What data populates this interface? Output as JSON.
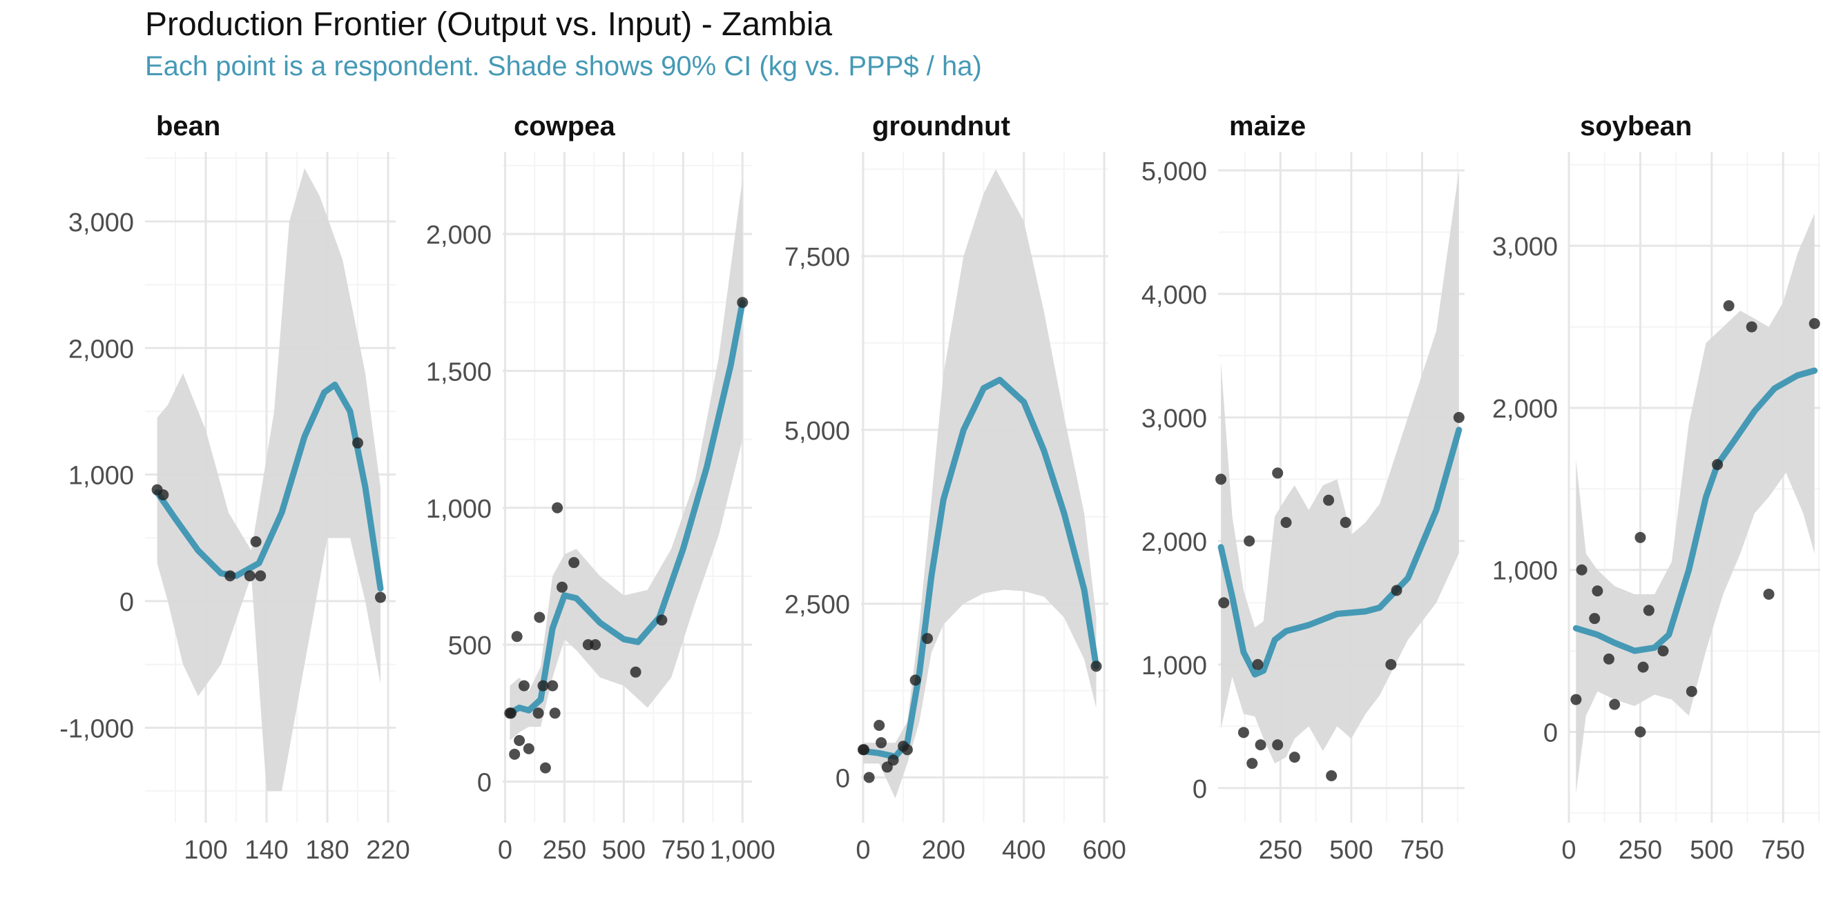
{
  "title": "Production Frontier (Output vs. Input) - Zambia",
  "subtitle": "Each point is a respondent. Shade shows 90% CI (kg vs. PPP$ / ha)",
  "colors": {
    "curve": "#4599b5",
    "band": "#d9d9d9",
    "point": "#222222",
    "grid_major": "#e6e6e6",
    "grid_minor": "#f4f4f4",
    "tick_text": "#4d4d4d"
  },
  "chart_data": [
    {
      "type": "scatter",
      "facet": "bean",
      "xlim": [
        60,
        225
      ],
      "ylim": [
        -1750,
        3550
      ],
      "x_ticks": [
        100,
        140,
        180,
        220
      ],
      "x_tick_labels": [
        "100",
        "140",
        "180",
        "220"
      ],
      "y_ticks": [
        -1000,
        0,
        1000,
        2000,
        3000
      ],
      "y_tick_labels": [
        "-1,000",
        "0",
        "1,000",
        "2,000",
        "3,000"
      ],
      "points": [
        [
          68,
          880
        ],
        [
          72,
          840
        ],
        [
          116,
          200
        ],
        [
          129,
          200
        ],
        [
          133,
          470
        ],
        [
          136,
          200
        ],
        [
          200,
          1250
        ],
        [
          215,
          30
        ]
      ],
      "fit": [
        [
          68,
          860
        ],
        [
          80,
          650
        ],
        [
          95,
          400
        ],
        [
          110,
          220
        ],
        [
          120,
          200
        ],
        [
          135,
          300
        ],
        [
          150,
          700
        ],
        [
          165,
          1300
        ],
        [
          178,
          1650
        ],
        [
          185,
          1710
        ],
        [
          195,
          1500
        ],
        [
          205,
          900
        ],
        [
          215,
          100
        ]
      ],
      "ci_upper": [
        [
          68,
          1450
        ],
        [
          75,
          1550
        ],
        [
          85,
          1800
        ],
        [
          100,
          1350
        ],
        [
          115,
          700
        ],
        [
          130,
          400
        ],
        [
          145,
          1500
        ],
        [
          155,
          3000
        ],
        [
          165,
          3420
        ],
        [
          175,
          3200
        ],
        [
          190,
          2700
        ],
        [
          205,
          1800
        ],
        [
          215,
          900
        ]
      ],
      "ci_lower": [
        [
          68,
          300
        ],
        [
          75,
          0
        ],
        [
          85,
          -500
        ],
        [
          95,
          -750
        ],
        [
          110,
          -500
        ],
        [
          120,
          -150
        ],
        [
          130,
          200
        ],
        [
          140,
          -1500
        ],
        [
          150,
          -1500
        ],
        [
          165,
          -500
        ],
        [
          180,
          500
        ],
        [
          195,
          500
        ],
        [
          205,
          0
        ],
        [
          215,
          -650
        ]
      ]
    },
    {
      "type": "scatter",
      "facet": "cowpea",
      "xlim": [
        -10,
        1040
      ],
      "ylim": [
        -150,
        2300
      ],
      "x_ticks": [
        0,
        250,
        500,
        750,
        1000
      ],
      "x_tick_labels": [
        "0",
        "250",
        "500",
        "750",
        "1,000"
      ],
      "y_ticks": [
        0,
        500,
        1000,
        1500,
        2000
      ],
      "y_tick_labels": [
        "0",
        "500",
        "1,000",
        "1,500",
        "2,000"
      ],
      "points": [
        [
          20,
          250
        ],
        [
          25,
          250
        ],
        [
          40,
          100
        ],
        [
          50,
          530
        ],
        [
          60,
          150
        ],
        [
          80,
          350
        ],
        [
          100,
          120
        ],
        [
          140,
          250
        ],
        [
          145,
          600
        ],
        [
          160,
          350
        ],
        [
          170,
          50
        ],
        [
          200,
          350
        ],
        [
          210,
          250
        ],
        [
          220,
          1000
        ],
        [
          240,
          710
        ],
        [
          290,
          800
        ],
        [
          350,
          500
        ],
        [
          380,
          500
        ],
        [
          550,
          400
        ],
        [
          660,
          590
        ],
        [
          1000,
          1750
        ]
      ],
      "fit": [
        [
          20,
          250
        ],
        [
          60,
          270
        ],
        [
          100,
          260
        ],
        [
          150,
          300
        ],
        [
          200,
          560
        ],
        [
          250,
          680
        ],
        [
          300,
          670
        ],
        [
          400,
          580
        ],
        [
          500,
          520
        ],
        [
          560,
          510
        ],
        [
          650,
          600
        ],
        [
          750,
          850
        ],
        [
          850,
          1150
        ],
        [
          950,
          1520
        ],
        [
          1000,
          1750
        ]
      ],
      "ci_upper": [
        [
          20,
          350
        ],
        [
          60,
          380
        ],
        [
          100,
          330
        ],
        [
          150,
          420
        ],
        [
          200,
          750
        ],
        [
          250,
          830
        ],
        [
          300,
          850
        ],
        [
          400,
          750
        ],
        [
          500,
          680
        ],
        [
          600,
          700
        ],
        [
          700,
          850
        ],
        [
          800,
          1100
        ],
        [
          900,
          1550
        ],
        [
          1000,
          2200
        ]
      ],
      "ci_lower": [
        [
          20,
          150
        ],
        [
          60,
          180
        ],
        [
          100,
          200
        ],
        [
          150,
          200
        ],
        [
          200,
          380
        ],
        [
          250,
          520
        ],
        [
          300,
          480
        ],
        [
          400,
          380
        ],
        [
          500,
          350
        ],
        [
          600,
          270
        ],
        [
          700,
          380
        ],
        [
          800,
          650
        ],
        [
          900,
          900
        ],
        [
          1000,
          1250
        ]
      ]
    },
    {
      "type": "scatter",
      "facet": "groundnut",
      "xlim": [
        -5,
        610
      ],
      "ylim": [
        -650,
        9000
      ],
      "x_ticks": [
        0,
        200,
        400,
        600
      ],
      "x_tick_labels": [
        "0",
        "200",
        "400",
        "600"
      ],
      "y_ticks": [
        0,
        2500,
        5000,
        7500
      ],
      "y_tick_labels": [
        "0",
        "2,500",
        "5,000",
        "7,500"
      ],
      "points": [
        [
          0,
          400
        ],
        [
          2,
          400
        ],
        [
          15,
          0
        ],
        [
          40,
          750
        ],
        [
          45,
          500
        ],
        [
          60,
          150
        ],
        [
          75,
          250
        ],
        [
          100,
          450
        ],
        [
          110,
          400
        ],
        [
          130,
          1400
        ],
        [
          160,
          2000
        ],
        [
          580,
          1600
        ]
      ],
      "fit": [
        [
          0,
          380
        ],
        [
          40,
          350
        ],
        [
          80,
          300
        ],
        [
          110,
          500
        ],
        [
          140,
          1500
        ],
        [
          170,
          2900
        ],
        [
          200,
          4000
        ],
        [
          250,
          5000
        ],
        [
          300,
          5600
        ],
        [
          340,
          5720
        ],
        [
          400,
          5400
        ],
        [
          450,
          4700
        ],
        [
          500,
          3800
        ],
        [
          550,
          2700
        ],
        [
          580,
          1600
        ]
      ],
      "ci_upper": [
        [
          0,
          500
        ],
        [
          40,
          500
        ],
        [
          80,
          500
        ],
        [
          110,
          800
        ],
        [
          140,
          2200
        ],
        [
          170,
          4000
        ],
        [
          200,
          5800
        ],
        [
          250,
          7500
        ],
        [
          300,
          8400
        ],
        [
          330,
          8750
        ],
        [
          400,
          8000
        ],
        [
          450,
          6700
        ],
        [
          500,
          5200
        ],
        [
          550,
          3800
        ],
        [
          580,
          2300
        ]
      ],
      "ci_lower": [
        [
          0,
          200
        ],
        [
          40,
          200
        ],
        [
          80,
          -300
        ],
        [
          110,
          200
        ],
        [
          140,
          800
        ],
        [
          170,
          1800
        ],
        [
          200,
          2200
        ],
        [
          250,
          2500
        ],
        [
          300,
          2650
        ],
        [
          350,
          2700
        ],
        [
          400,
          2680
        ],
        [
          450,
          2600
        ],
        [
          500,
          2300
        ],
        [
          550,
          1700
        ],
        [
          580,
          1000
        ]
      ]
    },
    {
      "type": "scatter",
      "facet": "maize",
      "xlim": [
        30,
        900
      ],
      "ylim": [
        -280,
        5150
      ],
      "x_ticks": [
        250,
        500,
        750
      ],
      "x_tick_labels": [
        "250",
        "500",
        "750"
      ],
      "y_ticks": [
        0,
        1000,
        2000,
        3000,
        4000,
        5000
      ],
      "y_tick_labels": [
        "0",
        "1,000",
        "2,000",
        "3,000",
        "4,000",
        "5,000"
      ],
      "points": [
        [
          40,
          2500
        ],
        [
          50,
          1500
        ],
        [
          120,
          450
        ],
        [
          140,
          2000
        ],
        [
          150,
          200
        ],
        [
          170,
          1000
        ],
        [
          180,
          350
        ],
        [
          240,
          350
        ],
        [
          240,
          2550
        ],
        [
          270,
          2150
        ],
        [
          300,
          250
        ],
        [
          420,
          2330
        ],
        [
          430,
          100
        ],
        [
          480,
          2150
        ],
        [
          640,
          1000
        ],
        [
          660,
          1600
        ],
        [
          880,
          3000
        ]
      ],
      "fit": [
        [
          40,
          1950
        ],
        [
          80,
          1550
        ],
        [
          120,
          1100
        ],
        [
          160,
          920
        ],
        [
          190,
          950
        ],
        [
          230,
          1200
        ],
        [
          270,
          1270
        ],
        [
          350,
          1320
        ],
        [
          450,
          1410
        ],
        [
          550,
          1430
        ],
        [
          600,
          1460
        ],
        [
          700,
          1700
        ],
        [
          800,
          2250
        ],
        [
          880,
          2900
        ]
      ],
      "ci_upper": [
        [
          40,
          3450
        ],
        [
          80,
          2200
        ],
        [
          120,
          1600
        ],
        [
          160,
          1300
        ],
        [
          190,
          1350
        ],
        [
          230,
          2200
        ],
        [
          270,
          2350
        ],
        [
          300,
          2450
        ],
        [
          350,
          2250
        ],
        [
          400,
          2450
        ],
        [
          450,
          2500
        ],
        [
          500,
          2050
        ],
        [
          550,
          2150
        ],
        [
          600,
          2300
        ],
        [
          700,
          3000
        ],
        [
          800,
          3700
        ],
        [
          880,
          5000
        ]
      ],
      "ci_lower": [
        [
          40,
          480
        ],
        [
          80,
          900
        ],
        [
          120,
          600
        ],
        [
          160,
          580
        ],
        [
          190,
          400
        ],
        [
          230,
          200
        ],
        [
          270,
          250
        ],
        [
          300,
          400
        ],
        [
          350,
          500
        ],
        [
          400,
          300
        ],
        [
          450,
          500
        ],
        [
          500,
          400
        ],
        [
          550,
          600
        ],
        [
          600,
          750
        ],
        [
          700,
          1200
        ],
        [
          800,
          1500
        ],
        [
          880,
          1900
        ]
      ]
    },
    {
      "type": "scatter",
      "facet": "soybean",
      "xlim": [
        0,
        880
      ],
      "ylim": [
        -560,
        3580
      ],
      "x_ticks": [
        0,
        250,
        500,
        750
      ],
      "x_tick_labels": [
        "0",
        "250",
        "500",
        "750"
      ],
      "y_ticks": [
        0,
        1000,
        2000,
        3000
      ],
      "y_tick_labels": [
        "0",
        "1,000",
        "2,000",
        "3,000"
      ],
      "points": [
        [
          25,
          200
        ],
        [
          45,
          1000
        ],
        [
          90,
          700
        ],
        [
          100,
          870
        ],
        [
          140,
          450
        ],
        [
          160,
          170
        ],
        [
          250,
          1200
        ],
        [
          250,
          0
        ],
        [
          260,
          400
        ],
        [
          280,
          750
        ],
        [
          330,
          500
        ],
        [
          430,
          250
        ],
        [
          520,
          1650
        ],
        [
          560,
          2630
        ],
        [
          640,
          2500
        ],
        [
          700,
          850
        ],
        [
          860,
          2520
        ]
      ],
      "fit": [
        [
          25,
          640
        ],
        [
          100,
          600
        ],
        [
          160,
          550
        ],
        [
          230,
          500
        ],
        [
          300,
          520
        ],
        [
          350,
          600
        ],
        [
          420,
          1000
        ],
        [
          480,
          1450
        ],
        [
          520,
          1650
        ],
        [
          580,
          1800
        ],
        [
          650,
          1980
        ],
        [
          720,
          2120
        ],
        [
          800,
          2200
        ],
        [
          860,
          2230
        ]
      ],
      "ci_upper": [
        [
          25,
          1680
        ],
        [
          60,
          1100
        ],
        [
          100,
          1000
        ],
        [
          160,
          900
        ],
        [
          230,
          850
        ],
        [
          300,
          850
        ],
        [
          360,
          1050
        ],
        [
          420,
          1900
        ],
        [
          480,
          2400
        ],
        [
          540,
          2500
        ],
        [
          600,
          2600
        ],
        [
          650,
          2550
        ],
        [
          700,
          2500
        ],
        [
          750,
          2650
        ],
        [
          800,
          2950
        ],
        [
          860,
          3200
        ]
      ],
      "ci_lower": [
        [
          25,
          -380
        ],
        [
          60,
          100
        ],
        [
          100,
          250
        ],
        [
          160,
          200
        ],
        [
          230,
          160
        ],
        [
          300,
          230
        ],
        [
          360,
          200
        ],
        [
          420,
          100
        ],
        [
          480,
          500
        ],
        [
          540,
          850
        ],
        [
          600,
          1100
        ],
        [
          650,
          1350
        ],
        [
          700,
          1450
        ],
        [
          760,
          1600
        ],
        [
          820,
          1350
        ],
        [
          860,
          1100
        ]
      ]
    }
  ]
}
